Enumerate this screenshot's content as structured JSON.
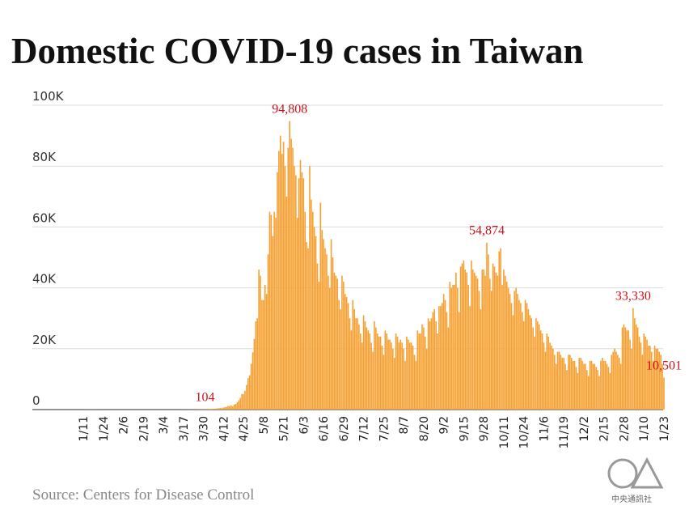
{
  "chart_data": {
    "type": "bar",
    "title": "Domestic COVID-19 cases in Taiwan",
    "source": "Source: Centers for Disease Control",
    "logo_text": "中央通訊社",
    "color": "#f7a032",
    "grid": true,
    "ylim": [
      0,
      100000
    ],
    "yticks": [
      0,
      {
        "value": 20000,
        "label": "20K"
      },
      {
        "value": 40000,
        "label": "40K"
      },
      {
        "value": 60000,
        "label": "60K"
      },
      {
        "value": 80000,
        "label": "80K"
      },
      {
        "value": 100000,
        "label": "100K"
      }
    ],
    "categories": [
      "1/11",
      null,
      null,
      null,
      null,
      null,
      null,
      null,
      null,
      null,
      null,
      null,
      null,
      "1/24",
      null,
      null,
      null,
      null,
      null,
      null,
      null,
      null,
      null,
      null,
      null,
      null,
      "2/6",
      null,
      null,
      null,
      null,
      null,
      null,
      null,
      null,
      null,
      null,
      null,
      null,
      "2/19",
      null,
      null,
      null,
      null,
      null,
      null,
      null,
      null,
      null,
      null,
      null,
      null,
      "3/4",
      null,
      null,
      null,
      null,
      null,
      null,
      null,
      null,
      null,
      null,
      null,
      null,
      "3/17",
      null,
      null,
      null,
      null,
      null,
      null,
      null,
      null,
      null,
      null,
      null,
      null,
      "3/30",
      null,
      null,
      null,
      null,
      null,
      null,
      null,
      null,
      null,
      null,
      null,
      null,
      "4/12",
      null,
      null,
      null,
      null,
      null,
      null,
      null,
      null,
      null,
      null,
      null,
      null,
      "4/25",
      null,
      null,
      null,
      null,
      null,
      null,
      null,
      null,
      null,
      null,
      null,
      null,
      "5/8",
      null,
      null,
      null,
      null,
      null,
      null,
      null,
      null,
      null,
      null,
      null,
      null,
      "5/21",
      null,
      null,
      null,
      null,
      null,
      null,
      null,
      null,
      null,
      null,
      null,
      null,
      "6/3",
      null,
      null,
      null,
      null,
      null,
      null,
      null,
      null,
      null,
      null,
      null,
      null,
      "6/16",
      null,
      null,
      null,
      null,
      null,
      null,
      null,
      null,
      null,
      null,
      null,
      null,
      "6/29",
      null,
      null,
      null,
      null,
      null,
      null,
      null,
      null,
      null,
      null,
      null,
      null,
      "7/12",
      null,
      null,
      null,
      null,
      null,
      null,
      null,
      null,
      null,
      null,
      null,
      null,
      "7/25",
      null,
      null,
      null,
      null,
      null,
      null,
      null,
      null,
      null,
      null,
      null,
      null,
      "8/7",
      null,
      null,
      null,
      null,
      null,
      null,
      null,
      null,
      null,
      null,
      null,
      null,
      "8/20",
      null,
      null,
      null,
      null,
      null,
      null,
      null,
      null,
      null,
      null,
      null,
      null,
      "9/2",
      null,
      null,
      null,
      null,
      null,
      null,
      null,
      null,
      null,
      null,
      null,
      null,
      "9/15",
      null,
      null,
      null,
      null,
      null,
      null,
      null,
      null,
      null,
      null,
      null,
      null,
      "9/28",
      null,
      null,
      null,
      null,
      null,
      null,
      null,
      null,
      null,
      null,
      null,
      null,
      "10/11",
      null,
      null,
      null,
      null,
      null,
      null,
      null,
      null,
      null,
      null,
      null,
      null,
      "10/24",
      null,
      null,
      null,
      null,
      null,
      null,
      null,
      null,
      null,
      null,
      null,
      null,
      "11/6",
      null,
      null,
      null,
      null,
      null,
      null,
      null,
      null,
      null,
      null,
      null,
      null,
      "11/19",
      null,
      null,
      null,
      null,
      null,
      null,
      null,
      null,
      null,
      null,
      null,
      null,
      "12/2",
      null,
      null,
      null,
      null,
      null,
      null,
      null,
      null,
      null,
      null,
      null,
      null,
      "2/15",
      null,
      null,
      null,
      null,
      null,
      null,
      null,
      null,
      null,
      null,
      null,
      null,
      "2/28",
      null,
      null,
      null,
      null,
      null,
      null,
      null,
      null,
      null,
      null,
      null,
      null,
      "1/10",
      null,
      null,
      null,
      null,
      null,
      null,
      null,
      null,
      null,
      null,
      null,
      null,
      "1/23"
    ],
    "values": [
      18,
      15,
      12,
      24,
      11,
      9,
      6,
      12,
      8,
      14,
      10,
      7,
      5,
      3,
      4,
      6,
      2,
      3,
      5,
      1,
      2,
      4,
      3,
      1,
      0,
      2,
      1,
      3,
      2,
      0,
      1,
      3,
      2,
      1,
      0,
      2,
      1,
      3,
      2,
      0,
      1,
      2,
      1,
      0,
      3,
      2,
      1,
      0,
      2,
      1,
      0,
      2,
      1,
      3,
      2,
      1,
      2,
      1,
      4,
      3,
      2,
      5,
      1,
      6,
      8,
      5,
      12,
      10,
      18,
      28,
      30,
      44,
      36,
      52,
      61,
      72,
      68,
      89,
      96,
      104,
      83,
      112,
      128,
      136,
      210,
      268,
      312,
      382,
      441,
      523,
      421,
      658,
      776,
      880,
      1216,
      1200,
      1382,
      1088,
      1658,
      1882,
      2386,
      3070,
      3846,
      5102,
      5076,
      6153,
      8089,
      10354,
      11278,
      15049,
      18800,
      23200,
      29000,
      30000,
      46000,
      44000,
      36000,
      36000,
      41000,
      38000,
      51000,
      65000,
      64000,
      57000,
      65000,
      63000,
      78000,
      85000,
      90000,
      84000,
      88000,
      80000,
      70000,
      86000,
      94808,
      89000,
      86000,
      80000,
      77000,
      63000,
      76000,
      82000,
      78000,
      76000,
      65000,
      55000,
      53000,
      80000,
      69000,
      65000,
      60000,
      57000,
      48000,
      42000,
      68000,
      59000,
      56000,
      53000,
      51000,
      44000,
      40000,
      56000,
      50000,
      45000,
      44000,
      43000,
      36000,
      33000,
      44000,
      42000,
      38000,
      37000,
      35000,
      30000,
      26000,
      36000,
      33000,
      30000,
      30000,
      28000,
      25000,
      22000,
      31000,
      29000,
      27000,
      26000,
      25000,
      22000,
      19000,
      29000,
      27000,
      25000,
      24000,
      24000,
      21000,
      18000,
      26000,
      25000,
      23000,
      23000,
      22000,
      20000,
      17000,
      25000,
      24000,
      22000,
      23000,
      22000,
      20000,
      16000,
      24000,
      23000,
      22000,
      22000,
      21000,
      18000,
      16000,
      26000,
      25000,
      25000,
      28000,
      27000,
      24000,
      20000,
      30000,
      29000,
      30000,
      32000,
      33000,
      29000,
      25000,
      34000,
      34000,
      35000,
      38000,
      36000,
      32000,
      27000,
      42000,
      40000,
      41000,
      41000,
      45000,
      40000,
      32000,
      47000,
      48000,
      49000,
      46000,
      45000,
      41000,
      34000,
      49000,
      46000,
      45000,
      44000,
      43000,
      39000,
      33000,
      46000,
      46000,
      44000,
      54874,
      51000,
      43000,
      39000,
      48000,
      47000,
      45000,
      44000,
      52000,
      53000,
      41000,
      46000,
      44000,
      42000,
      40000,
      38000,
      35000,
      31000,
      39000,
      40000,
      38000,
      36000,
      35000,
      32000,
      29000,
      36000,
      35000,
      33000,
      31000,
      30000,
      27000,
      24000,
      30000,
      29000,
      28000,
      26000,
      25000,
      22000,
      19000,
      25000,
      24000,
      22000,
      21000,
      20000,
      18000,
      15000,
      19000,
      19000,
      18000,
      17000,
      17000,
      15000,
      13000,
      18000,
      18000,
      17000,
      16000,
      16000,
      14000,
      12000,
      17000,
      17000,
      16000,
      15000,
      15000,
      13000,
      11000,
      16000,
      16000,
      15000,
      15000,
      14000,
      13000,
      11000,
      16000,
      17000,
      16000,
      16000,
      15000,
      14000,
      12000,
      18000,
      19000,
      20000,
      19000,
      18000,
      17000,
      15000,
      27000,
      28000,
      27000,
      26000,
      26000,
      23000,
      20000,
      33330,
      30000,
      28000,
      27000,
      24000,
      22000,
      18000,
      25000,
      24000,
      23000,
      21000,
      21000,
      19000,
      16000,
      21000,
      20000,
      20000,
      19000,
      18000,
      15000,
      10501
    ],
    "value_labels": [
      null,
      null,
      null,
      null,
      null,
      null,
      null,
      null,
      null,
      null,
      null,
      null,
      null,
      null,
      null,
      null,
      null,
      null,
      null,
      null,
      null,
      null,
      null,
      null,
      null,
      null,
      null,
      null,
      null,
      null,
      null,
      null,
      null,
      null,
      null,
      null,
      null,
      null,
      null,
      null,
      null,
      null,
      null,
      null,
      null,
      null,
      null,
      null,
      null,
      null,
      null,
      null,
      null,
      null,
      null,
      null,
      null,
      null,
      null,
      null,
      null,
      null,
      null,
      null,
      null,
      null,
      null,
      null,
      null,
      null,
      null,
      null,
      null,
      null,
      null,
      null,
      null,
      null,
      null,
      "104",
      null,
      null,
      null,
      null,
      null,
      null,
      null,
      null,
      null,
      null,
      null,
      null,
      null,
      null,
      null,
      null,
      null,
      null,
      null,
      null,
      null,
      null,
      null,
      null,
      null,
      null,
      null,
      null,
      null,
      null,
      null,
      null,
      null,
      null,
      null,
      null,
      null,
      null,
      null,
      null,
      null,
      null,
      null,
      null,
      null,
      null,
      null,
      null,
      null,
      null,
      null,
      null,
      null,
      null,
      "94,808",
      null,
      null,
      null,
      null,
      null,
      null,
      null,
      null,
      null,
      null,
      null,
      null,
      null,
      null,
      null,
      null,
      null,
      null,
      null,
      null,
      null,
      null,
      null,
      null,
      null,
      null,
      null,
      null,
      null,
      null,
      null,
      null,
      null,
      null,
      null,
      null,
      null,
      null,
      null,
      null,
      null,
      null,
      null,
      null,
      null,
      null,
      null,
      null,
      null,
      null,
      null,
      null,
      null,
      null,
      null,
      null,
      null,
      null,
      null,
      null,
      null,
      null,
      null,
      null,
      null,
      null,
      null,
      null,
      null,
      null,
      null,
      null,
      null,
      null,
      null,
      null,
      null,
      null,
      null,
      null,
      null,
      null,
      null,
      null,
      null,
      null,
      null,
      null,
      null,
      null,
      null,
      null,
      null,
      null,
      null,
      null,
      null,
      null,
      null,
      null,
      null,
      null,
      null,
      null,
      null,
      null,
      null,
      null,
      null,
      null,
      null,
      null,
      null,
      null,
      null,
      null,
      null,
      null,
      null,
      null,
      null,
      null,
      null,
      null,
      null,
      null,
      null,
      "54,874",
      null,
      null,
      null,
      null,
      null,
      null,
      null,
      null,
      null,
      null,
      null,
      null,
      null,
      null,
      null,
      null,
      null,
      null,
      null,
      null,
      null,
      null,
      null,
      null,
      null,
      null,
      null,
      null,
      null,
      null,
      null,
      null,
      null,
      null,
      null,
      null,
      null,
      null,
      null,
      null,
      null,
      null,
      null,
      null,
      null,
      null,
      null,
      null,
      null,
      null,
      null,
      null,
      null,
      null,
      null,
      null,
      null,
      null,
      null,
      null,
      null,
      null,
      null,
      null,
      null,
      null,
      null,
      null,
      null,
      null,
      null,
      null,
      null,
      null,
      null,
      null,
      null,
      null,
      null,
      null,
      null,
      null,
      null,
      null,
      null,
      null,
      null,
      null,
      null,
      null,
      null,
      null,
      null,
      null,
      "33,330",
      null,
      null,
      null,
      null,
      null,
      null,
      null,
      null,
      null,
      null,
      null,
      null,
      null,
      null,
      null,
      null,
      null,
      null,
      null,
      "10,501"
    ]
  }
}
